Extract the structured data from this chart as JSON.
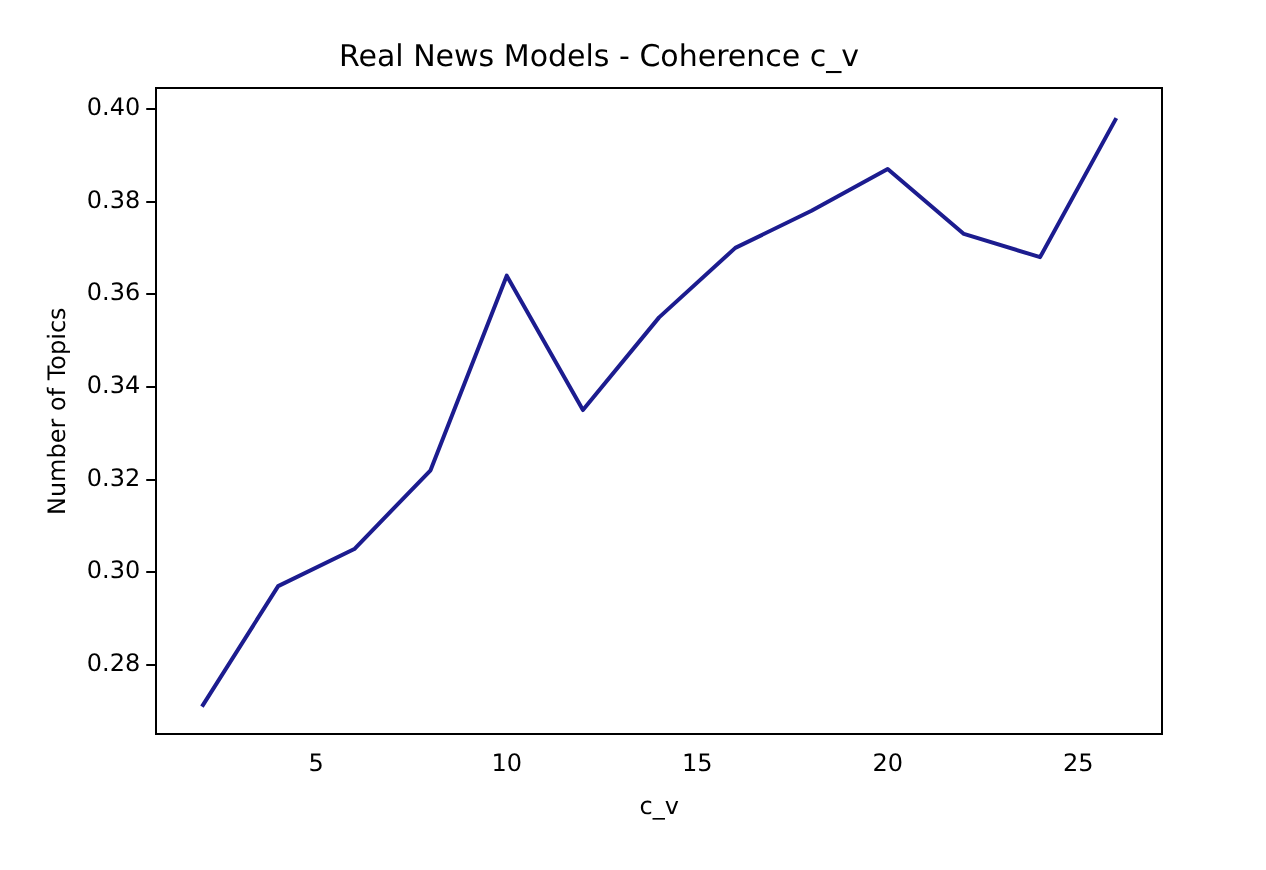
{
  "chart_data": {
    "type": "line",
    "title": "Real News Models - Coherence c_v",
    "xlabel": "c_v",
    "ylabel": "Number of Topics",
    "x": [
      2,
      4,
      6,
      8,
      10,
      12,
      14,
      16,
      18,
      20,
      22,
      24,
      26
    ],
    "series": [
      {
        "color": "#1c1c8f",
        "values": [
          0.271,
          0.297,
          0.305,
          0.322,
          0.364,
          0.335,
          0.355,
          0.37,
          0.378,
          0.387,
          0.373,
          0.368,
          0.398
        ]
      }
    ],
    "xlim": [
      0.8,
      27.2
    ],
    "xticks": [
      5,
      10,
      15,
      20,
      25
    ],
    "ylim": [
      0.265,
      0.4045
    ],
    "yticks": [
      {
        "value": 0.28,
        "label": "0.28"
      },
      {
        "value": 0.3,
        "label": "0.30"
      },
      {
        "value": 0.32,
        "label": "0.32"
      },
      {
        "value": 0.34,
        "label": "0.34"
      },
      {
        "value": 0.36,
        "label": "0.36"
      },
      {
        "value": 0.38,
        "label": "0.38"
      },
      {
        "value": 0.4,
        "label": "0.40"
      }
    ],
    "grid": false,
    "legend": false,
    "marker": "none",
    "line_style": "solid"
  }
}
